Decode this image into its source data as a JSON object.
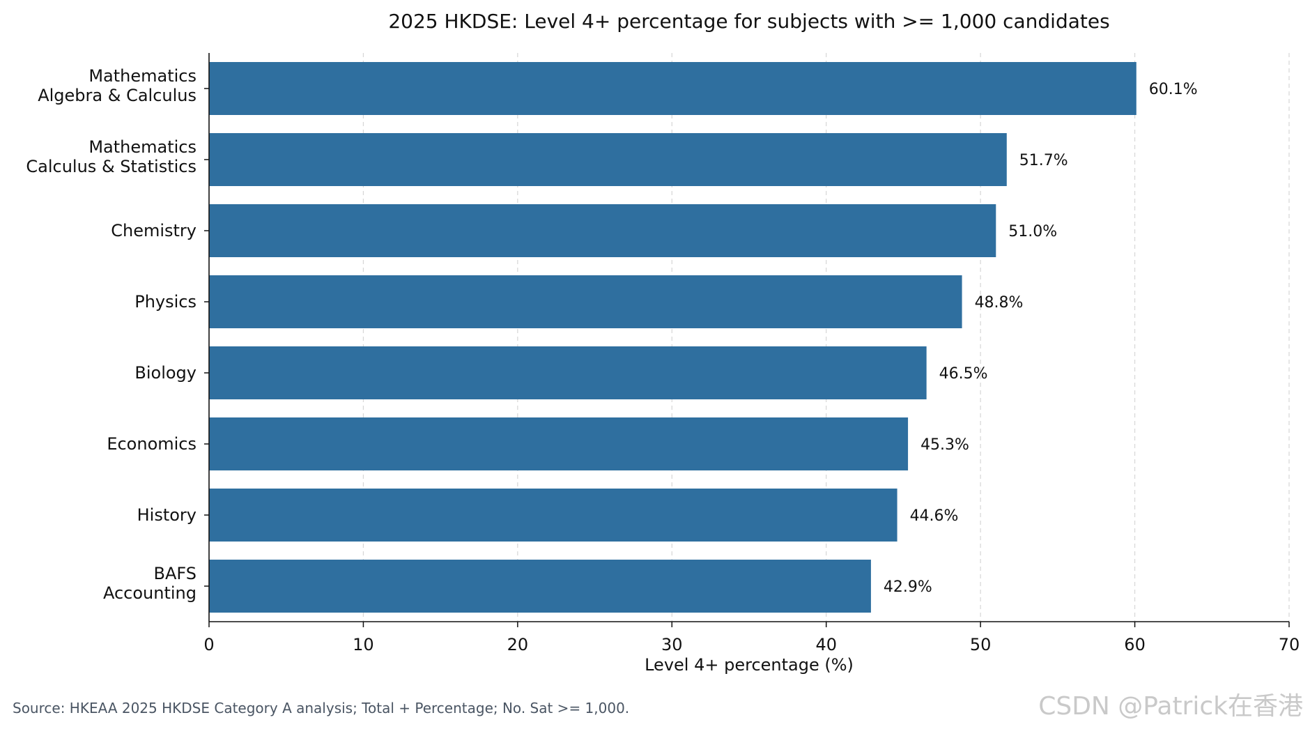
{
  "chart_data": {
    "type": "bar",
    "orientation": "horizontal",
    "title": "2025 HKDSE: Level 4+ percentage for subjects with >= 1,000 candidates",
    "xlabel": "Level 4+ percentage (%)",
    "ylabel": "",
    "xlim": [
      0,
      70
    ],
    "xticks": [
      0,
      10,
      20,
      30,
      40,
      50,
      60,
      70
    ],
    "grid": "vertical-dashed",
    "bar_color": "#2f6f9f",
    "categories": [
      [
        "Mathematics",
        "Algebra & Calculus"
      ],
      [
        "Mathematics",
        "Calculus & Statistics"
      ],
      [
        "Chemistry"
      ],
      [
        "Physics"
      ],
      [
        "Biology"
      ],
      [
        "Economics"
      ],
      [
        "History"
      ],
      [
        "BAFS",
        "Accounting"
      ]
    ],
    "values": [
      60.1,
      51.7,
      51.0,
      48.8,
      46.5,
      45.3,
      44.6,
      42.9
    ],
    "data_labels": [
      "60.1%",
      "51.7%",
      "51.0%",
      "48.8%",
      "46.5%",
      "45.3%",
      "44.6%",
      "42.9%"
    ]
  },
  "footer": {
    "source": "Source: HKEAA 2025 HKDSE Category A analysis; Total + Percentage; No. Sat >= 1,000.",
    "watermark": "CSDN @Patrick在香港"
  }
}
